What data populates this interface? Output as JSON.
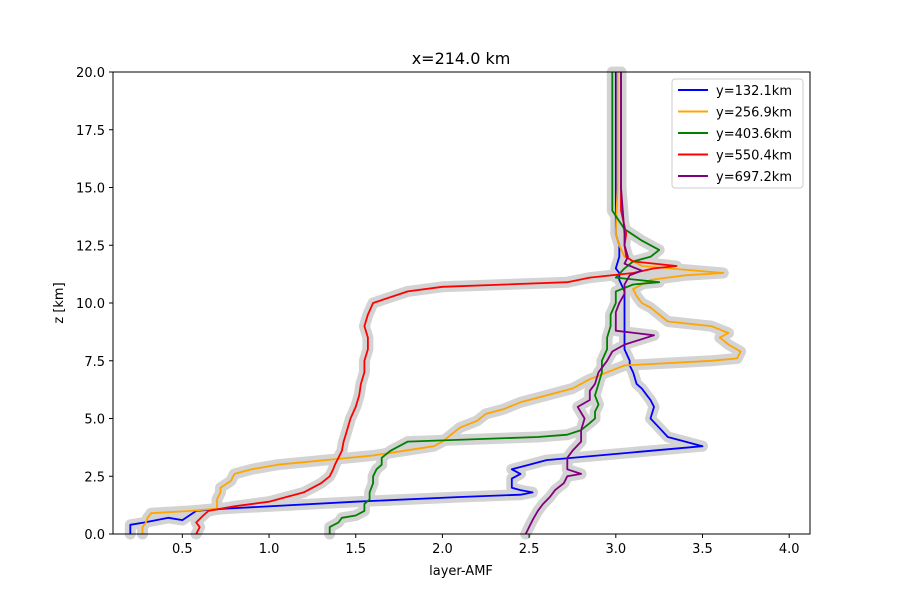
{
  "chart_data": {
    "type": "line",
    "title": "x=214.0 km",
    "xlabel": "layer-AMF",
    "ylabel": "z [km]",
    "xlim": [
      0.1,
      4.12
    ],
    "ylim": [
      0,
      20
    ],
    "xticks": [
      0.5,
      1.0,
      1.5,
      2.0,
      2.5,
      3.0,
      3.5,
      4.0
    ],
    "xtick_labels": [
      "0.5",
      "1.0",
      "1.5",
      "2.0",
      "2.5",
      "3.0",
      "3.5",
      "4.0"
    ],
    "yticks": [
      0,
      2.5,
      5,
      7.5,
      10,
      12.5,
      15,
      17.5,
      20
    ],
    "ytick_labels": [
      "0.0",
      "2.5",
      "5.0",
      "7.5",
      "10.0",
      "12.5",
      "15.0",
      "17.5",
      "20.0"
    ],
    "grid": false,
    "legend_position": "top-right",
    "uncertainty_band_color": "#d3d3d3",
    "series": [
      {
        "name": "y=132.1km",
        "color": "#0000ff",
        "points": [
          [
            0.2,
            0.0
          ],
          [
            0.2,
            0.4
          ],
          [
            0.28,
            0.5
          ],
          [
            0.42,
            0.7
          ],
          [
            0.5,
            0.6
          ],
          [
            0.58,
            1.0
          ],
          [
            0.75,
            1.1
          ],
          [
            1.5,
            1.4
          ],
          [
            2.1,
            1.6
          ],
          [
            2.45,
            1.7
          ],
          [
            2.52,
            1.8
          ],
          [
            2.45,
            1.9
          ],
          [
            2.4,
            2.0
          ],
          [
            2.4,
            2.4
          ],
          [
            2.45,
            2.6
          ],
          [
            2.4,
            2.8
          ],
          [
            2.5,
            3.0
          ],
          [
            2.6,
            3.2
          ],
          [
            3.2,
            3.6
          ],
          [
            3.5,
            3.8
          ],
          [
            3.4,
            4.0
          ],
          [
            3.3,
            4.2
          ],
          [
            3.25,
            4.6
          ],
          [
            3.2,
            5.0
          ],
          [
            3.22,
            5.5
          ],
          [
            3.2,
            5.8
          ],
          [
            3.18,
            6.0
          ],
          [
            3.15,
            6.3
          ],
          [
            3.12,
            6.5
          ],
          [
            3.1,
            7.0
          ],
          [
            3.08,
            7.3
          ],
          [
            3.08,
            7.5
          ],
          [
            3.05,
            8.0
          ],
          [
            3.05,
            9.0
          ],
          [
            3.05,
            10.0
          ],
          [
            3.05,
            10.5
          ],
          [
            3.02,
            11.0
          ],
          [
            3.02,
            11.3
          ],
          [
            3.0,
            11.5
          ],
          [
            3.02,
            12.0
          ],
          [
            3.02,
            12.5
          ],
          [
            3.0,
            13.0
          ],
          [
            3.0,
            15.0
          ],
          [
            3.0,
            17.5
          ],
          [
            3.0,
            20.0
          ]
        ]
      },
      {
        "name": "y=256.9km",
        "color": "#ffa500",
        "points": [
          [
            0.27,
            0.0
          ],
          [
            0.27,
            0.3
          ],
          [
            0.29,
            0.5
          ],
          [
            0.3,
            0.7
          ],
          [
            0.32,
            0.9
          ],
          [
            0.55,
            1.0
          ],
          [
            0.7,
            1.1
          ],
          [
            0.7,
            1.5
          ],
          [
            0.72,
            1.8
          ],
          [
            0.72,
            2.0
          ],
          [
            0.78,
            2.3
          ],
          [
            0.8,
            2.6
          ],
          [
            0.9,
            2.8
          ],
          [
            1.05,
            3.0
          ],
          [
            1.6,
            3.4
          ],
          [
            1.95,
            3.8
          ],
          [
            2.0,
            4.0
          ],
          [
            2.05,
            4.3
          ],
          [
            2.1,
            4.6
          ],
          [
            2.2,
            4.9
          ],
          [
            2.25,
            5.2
          ],
          [
            2.35,
            5.4
          ],
          [
            2.45,
            5.7
          ],
          [
            2.6,
            6.0
          ],
          [
            2.75,
            6.3
          ],
          [
            2.85,
            6.7
          ],
          [
            2.95,
            7.0
          ],
          [
            3.05,
            7.3
          ],
          [
            3.55,
            7.5
          ],
          [
            3.7,
            7.6
          ],
          [
            3.72,
            7.9
          ],
          [
            3.65,
            8.2
          ],
          [
            3.6,
            8.5
          ],
          [
            3.65,
            8.7
          ],
          [
            3.55,
            9.0
          ],
          [
            3.3,
            9.2
          ],
          [
            3.25,
            9.5
          ],
          [
            3.2,
            9.8
          ],
          [
            3.15,
            10.0
          ],
          [
            3.12,
            10.3
          ],
          [
            3.1,
            10.6
          ],
          [
            3.2,
            11.0
          ],
          [
            3.4,
            11.2
          ],
          [
            3.62,
            11.3
          ],
          [
            3.15,
            11.6
          ],
          [
            3.05,
            12.0
          ],
          [
            3.02,
            12.5
          ],
          [
            3.0,
            13.0
          ],
          [
            3.01,
            15.0
          ],
          [
            3.01,
            17.5
          ],
          [
            3.01,
            20.0
          ]
        ]
      },
      {
        "name": "y=403.6km",
        "color": "#008000",
        "points": [
          [
            1.35,
            0.0
          ],
          [
            1.35,
            0.3
          ],
          [
            1.4,
            0.5
          ],
          [
            1.42,
            0.7
          ],
          [
            1.5,
            0.8
          ],
          [
            1.55,
            1.0
          ],
          [
            1.55,
            1.3
          ],
          [
            1.58,
            1.5
          ],
          [
            1.58,
            1.8
          ],
          [
            1.6,
            2.2
          ],
          [
            1.6,
            2.5
          ],
          [
            1.62,
            2.8
          ],
          [
            1.65,
            3.0
          ],
          [
            1.65,
            3.3
          ],
          [
            1.7,
            3.6
          ],
          [
            1.75,
            3.8
          ],
          [
            1.8,
            4.0
          ],
          [
            2.55,
            4.2
          ],
          [
            2.72,
            4.3
          ],
          [
            2.8,
            4.5
          ],
          [
            2.85,
            4.8
          ],
          [
            2.88,
            5.0
          ],
          [
            2.88,
            5.3
          ],
          [
            2.9,
            5.6
          ],
          [
            2.88,
            6.0
          ],
          [
            2.9,
            6.5
          ],
          [
            2.92,
            7.0
          ],
          [
            2.92,
            7.5
          ],
          [
            2.95,
            8.0
          ],
          [
            2.95,
            8.5
          ],
          [
            2.97,
            9.0
          ],
          [
            2.97,
            9.5
          ],
          [
            3.0,
            10.0
          ],
          [
            3.0,
            10.5
          ],
          [
            3.1,
            10.8
          ],
          [
            3.25,
            10.9
          ],
          [
            3.0,
            11.1
          ],
          [
            3.05,
            11.5
          ],
          [
            3.1,
            11.8
          ],
          [
            3.2,
            12.0
          ],
          [
            3.25,
            12.3
          ],
          [
            3.15,
            12.7
          ],
          [
            3.05,
            13.2
          ],
          [
            2.98,
            14.0
          ],
          [
            2.98,
            15.0
          ],
          [
            2.98,
            17.5
          ],
          [
            2.98,
            20.0
          ]
        ]
      },
      {
        "name": "y=550.4km",
        "color": "#ff0000",
        "points": [
          [
            0.58,
            0.0
          ],
          [
            0.6,
            0.3
          ],
          [
            0.58,
            0.5
          ],
          [
            0.62,
            0.8
          ],
          [
            0.65,
            1.0
          ],
          [
            0.8,
            1.2
          ],
          [
            1.0,
            1.4
          ],
          [
            1.1,
            1.6
          ],
          [
            1.2,
            1.8
          ],
          [
            1.25,
            2.0
          ],
          [
            1.3,
            2.2
          ],
          [
            1.35,
            2.5
          ],
          [
            1.37,
            2.8
          ],
          [
            1.38,
            3.0
          ],
          [
            1.4,
            3.3
          ],
          [
            1.42,
            3.6
          ],
          [
            1.43,
            4.0
          ],
          [
            1.45,
            4.5
          ],
          [
            1.47,
            5.0
          ],
          [
            1.5,
            5.5
          ],
          [
            1.52,
            6.0
          ],
          [
            1.53,
            6.5
          ],
          [
            1.55,
            7.0
          ],
          [
            1.55,
            7.5
          ],
          [
            1.57,
            8.0
          ],
          [
            1.57,
            8.5
          ],
          [
            1.55,
            9.0
          ],
          [
            1.57,
            9.5
          ],
          [
            1.6,
            10.0
          ],
          [
            1.8,
            10.5
          ],
          [
            2.0,
            10.7
          ],
          [
            2.72,
            10.9
          ],
          [
            2.85,
            11.1
          ],
          [
            3.1,
            11.3
          ],
          [
            3.22,
            11.5
          ],
          [
            3.35,
            11.6
          ],
          [
            3.1,
            11.8
          ],
          [
            3.06,
            12.0
          ],
          [
            3.05,
            12.5
          ],
          [
            3.06,
            13.0
          ],
          [
            3.03,
            14.0
          ],
          [
            3.03,
            15.0
          ],
          [
            3.03,
            17.5
          ],
          [
            3.03,
            20.0
          ]
        ]
      },
      {
        "name": "y=697.2km",
        "color": "#800080",
        "points": [
          [
            2.48,
            0.0
          ],
          [
            2.5,
            0.3
          ],
          [
            2.52,
            0.6
          ],
          [
            2.55,
            1.0
          ],
          [
            2.58,
            1.3
          ],
          [
            2.62,
            1.6
          ],
          [
            2.65,
            1.9
          ],
          [
            2.7,
            2.2
          ],
          [
            2.72,
            2.5
          ],
          [
            2.8,
            2.6
          ],
          [
            2.72,
            2.8
          ],
          [
            2.72,
            3.0
          ],
          [
            2.72,
            3.3
          ],
          [
            2.75,
            3.6
          ],
          [
            2.8,
            4.0
          ],
          [
            2.8,
            4.5
          ],
          [
            2.82,
            5.0
          ],
          [
            2.78,
            5.5
          ],
          [
            2.85,
            5.8
          ],
          [
            2.85,
            6.2
          ],
          [
            2.88,
            6.5
          ],
          [
            2.9,
            7.0
          ],
          [
            2.95,
            7.5
          ],
          [
            2.98,
            7.9
          ],
          [
            3.05,
            8.2
          ],
          [
            3.22,
            8.6
          ],
          [
            3.0,
            8.8
          ],
          [
            3.0,
            9.2
          ],
          [
            3.0,
            9.6
          ],
          [
            3.02,
            10.0
          ],
          [
            3.05,
            10.4
          ],
          [
            3.05,
            10.8
          ],
          [
            3.08,
            11.2
          ],
          [
            3.15,
            11.4
          ],
          [
            3.05,
            11.7
          ],
          [
            3.07,
            12.0
          ],
          [
            3.05,
            12.5
          ],
          [
            3.05,
            13.0
          ],
          [
            3.03,
            15.0
          ],
          [
            3.03,
            17.5
          ],
          [
            3.03,
            20.0
          ]
        ]
      }
    ]
  }
}
